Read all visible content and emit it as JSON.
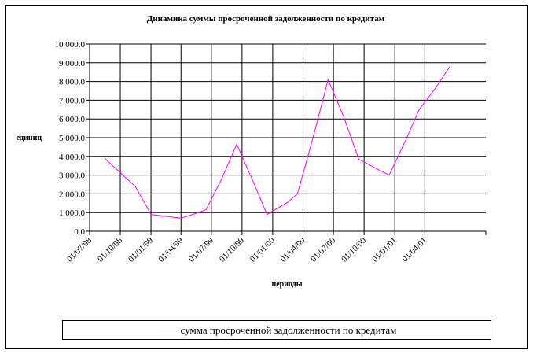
{
  "chart_data": {
    "type": "line",
    "title": "Динамика суммы просроченной задолженности по кредитам",
    "xlabel": "периоды",
    "ylabel": "единиц",
    "ylim": [
      0,
      10000
    ],
    "y_ticks": [
      "0.0",
      "1 000.0",
      "2 000.0",
      "3 000.0",
      "4 000.0",
      "5 000.0",
      "6 000.0",
      "7 000.0",
      "8 000.0",
      "9 000.0",
      "10 000.0"
    ],
    "x_tick_labels": [
      "01/07/98",
      "01/10/98",
      "01/01/99",
      "01/04/99",
      "01/07/99",
      "01/10/99",
      "01/01/00",
      "01/04/00",
      "01/07/00",
      "01/10/00",
      "01/01/01",
      "01/04/01"
    ],
    "grid": true,
    "legend": "bottom",
    "color": "#ff00ff",
    "series": [
      {
        "name": "сумма просроченной задолженности по кредитам",
        "points": [
          {
            "x": "1998-08-15",
            "y": 3900
          },
          {
            "x": "1998-11-15",
            "y": 2400
          },
          {
            "x": "1999-01-01",
            "y": 900
          },
          {
            "x": "1999-02-15",
            "y": 800
          },
          {
            "x": "1999-04-01",
            "y": 700
          },
          {
            "x": "1999-05-15",
            "y": 950
          },
          {
            "x": "1999-06-15",
            "y": 1150
          },
          {
            "x": "1999-08-01",
            "y": 2800
          },
          {
            "x": "1999-09-15",
            "y": 4650
          },
          {
            "x": "1999-11-01",
            "y": 2750
          },
          {
            "x": "1999-12-15",
            "y": 900
          },
          {
            "x": "2000-02-15",
            "y": 1550
          },
          {
            "x": "2000-03-15",
            "y": 2000
          },
          {
            "x": "2000-05-01",
            "y": 5000
          },
          {
            "x": "2000-06-15",
            "y": 8100
          },
          {
            "x": "2000-08-01",
            "y": 6100
          },
          {
            "x": "2000-09-15",
            "y": 3850
          },
          {
            "x": "2000-11-01",
            "y": 3400
          },
          {
            "x": "2000-12-15",
            "y": 3000
          },
          {
            "x": "2001-02-01",
            "y": 4800
          },
          {
            "x": "2001-03-15",
            "y": 6500
          },
          {
            "x": "2001-05-01",
            "y": 7600
          },
          {
            "x": "2001-06-15",
            "y": 8800
          }
        ]
      }
    ]
  }
}
